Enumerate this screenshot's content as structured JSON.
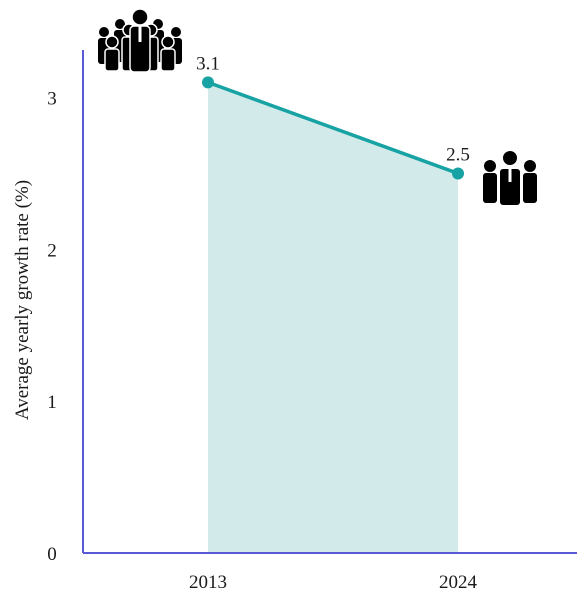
{
  "chart_data": {
    "type": "area",
    "title": "",
    "xlabel": "",
    "ylabel": "Average yearly growth rate (%)",
    "categories": [
      "2013",
      "2024"
    ],
    "series": [
      {
        "values": [
          3.1,
          2.5
        ],
        "labels": [
          "3.1",
          "2.5"
        ]
      }
    ],
    "ylim": [
      0,
      3.3
    ],
    "yticks": [
      0,
      1,
      2,
      3
    ],
    "grid": false,
    "colors": {
      "line": "#17a2a3",
      "fill": "#d3eaea",
      "axis": "#5a5ad6"
    },
    "icons": [
      "large-crowd-icon",
      "small-group-icon"
    ]
  }
}
